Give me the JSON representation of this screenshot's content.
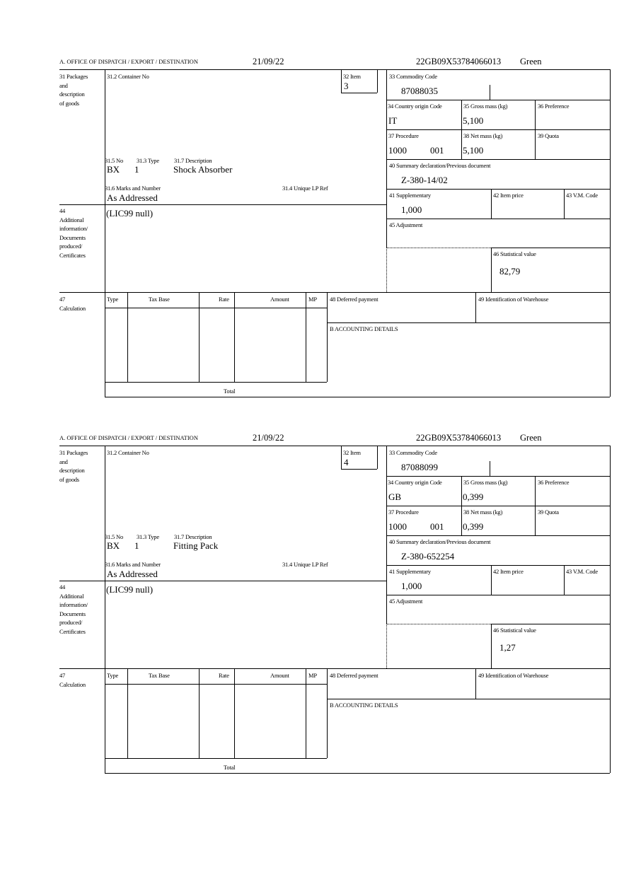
{
  "forms": [
    {
      "header": {
        "office": "A. OFFICE OF DISPATCH / EXPORT / DESTINATION",
        "date": "21/09/22",
        "reference": "22GB09X53784066013",
        "status": "Green"
      },
      "labels": {
        "packages": [
          "31 Packages",
          "and",
          "description",
          "of goods"
        ],
        "container": "31.2 Container No",
        "item": "32 Item",
        "no": "31.5 No",
        "type": "31.3 Type",
        "description": "31.7 Description",
        "marks": "31.6 Marks and Number",
        "unique_ref": "31.4 Unique LP Ref",
        "additional": [
          "44",
          "Additional",
          "information/",
          "Documents",
          "produced/",
          "Certificates"
        ],
        "commodity": "33 Commodity Code",
        "origin": "34 Country origin Code",
        "gross": "35 Gross mass (kg)",
        "preference": "36 Preference",
        "procedure": "37 Procedure",
        "net": "38 Net mass (kg)",
        "quota": "39 Quota",
        "summary": "40 Summary declaration/Previous document",
        "supplementary": "41 Supplementary",
        "item_price": "42 Item price",
        "vm_code": "43 V.M. Code",
        "adjustment": "45 Adjustment",
        "statistical": "46 Statistical value",
        "calculation": [
          "47",
          "Calculation"
        ],
        "calc_cols": [
          "Type",
          "Tax Base",
          "Rate",
          "Amount",
          "MP"
        ],
        "total": "Total",
        "deferred": "48 Deferred payment",
        "warehouse": "49 Identification of Warehouse",
        "accounting": "B ACCOUNTING DETAILS"
      },
      "values": {
        "item": "3",
        "no": "BX",
        "type": "1",
        "description": "Shock Absorber",
        "marks": "As Addressed",
        "additional": "(LIC99 null)",
        "commodity": "87088035",
        "origin": "IT",
        "gross": "5,100",
        "procedure": "1000",
        "procedure_add": "001",
        "net": "5,100",
        "summary": "Z-380-14/02",
        "supplementary": "1,000",
        "statistical": "82,79"
      }
    },
    {
      "header": {
        "office": "A. OFFICE OF DISPATCH / EXPORT / DESTINATION",
        "date": "21/09/22",
        "reference": "22GB09X53784066013",
        "status": "Green"
      },
      "labels": {
        "packages": [
          "31 Packages",
          "and",
          "description",
          "of goods"
        ],
        "container": "31.2 Container No",
        "item": "32 Item",
        "no": "31.5 No",
        "type": "31.3 Type",
        "description": "31.7 Description",
        "marks": "31.6 Marks and Number",
        "unique_ref": "31.4 Unique LP Ref",
        "additional": [
          "44",
          "Additional",
          "information/",
          "Documents",
          "produced/",
          "Certificates"
        ],
        "commodity": "33 Commodity Code",
        "origin": "34 Country origin Code",
        "gross": "35 Gross mass (kg)",
        "preference": "36 Preference",
        "procedure": "37 Procedure",
        "net": "38 Net mass (kg)",
        "quota": "39 Quota",
        "summary": "40 Summary declaration/Previous document",
        "supplementary": "41 Supplementary",
        "item_price": "42 Item price",
        "vm_code": "43 V.M. Code",
        "adjustment": "45 Adjustment",
        "statistical": "46 Statistical value",
        "calculation": [
          "47",
          "Calculation"
        ],
        "calc_cols": [
          "Type",
          "Tax Base",
          "Rate",
          "Amount",
          "MP"
        ],
        "total": "Total",
        "deferred": "48 Deferred payment",
        "warehouse": "49 Identification of Warehouse",
        "accounting": "B ACCOUNTING DETAILS"
      },
      "values": {
        "item": "4",
        "no": "BX",
        "type": "1",
        "description": "Fitting Pack",
        "marks": "As Addressed",
        "additional": "(LIC99 null)",
        "commodity": "87088099",
        "origin": "GB",
        "gross": "0,399",
        "procedure": "1000",
        "procedure_add": "001",
        "net": "0,399",
        "summary": "Z-380-652254",
        "supplementary": "1,000",
        "statistical": "1,27"
      }
    }
  ]
}
